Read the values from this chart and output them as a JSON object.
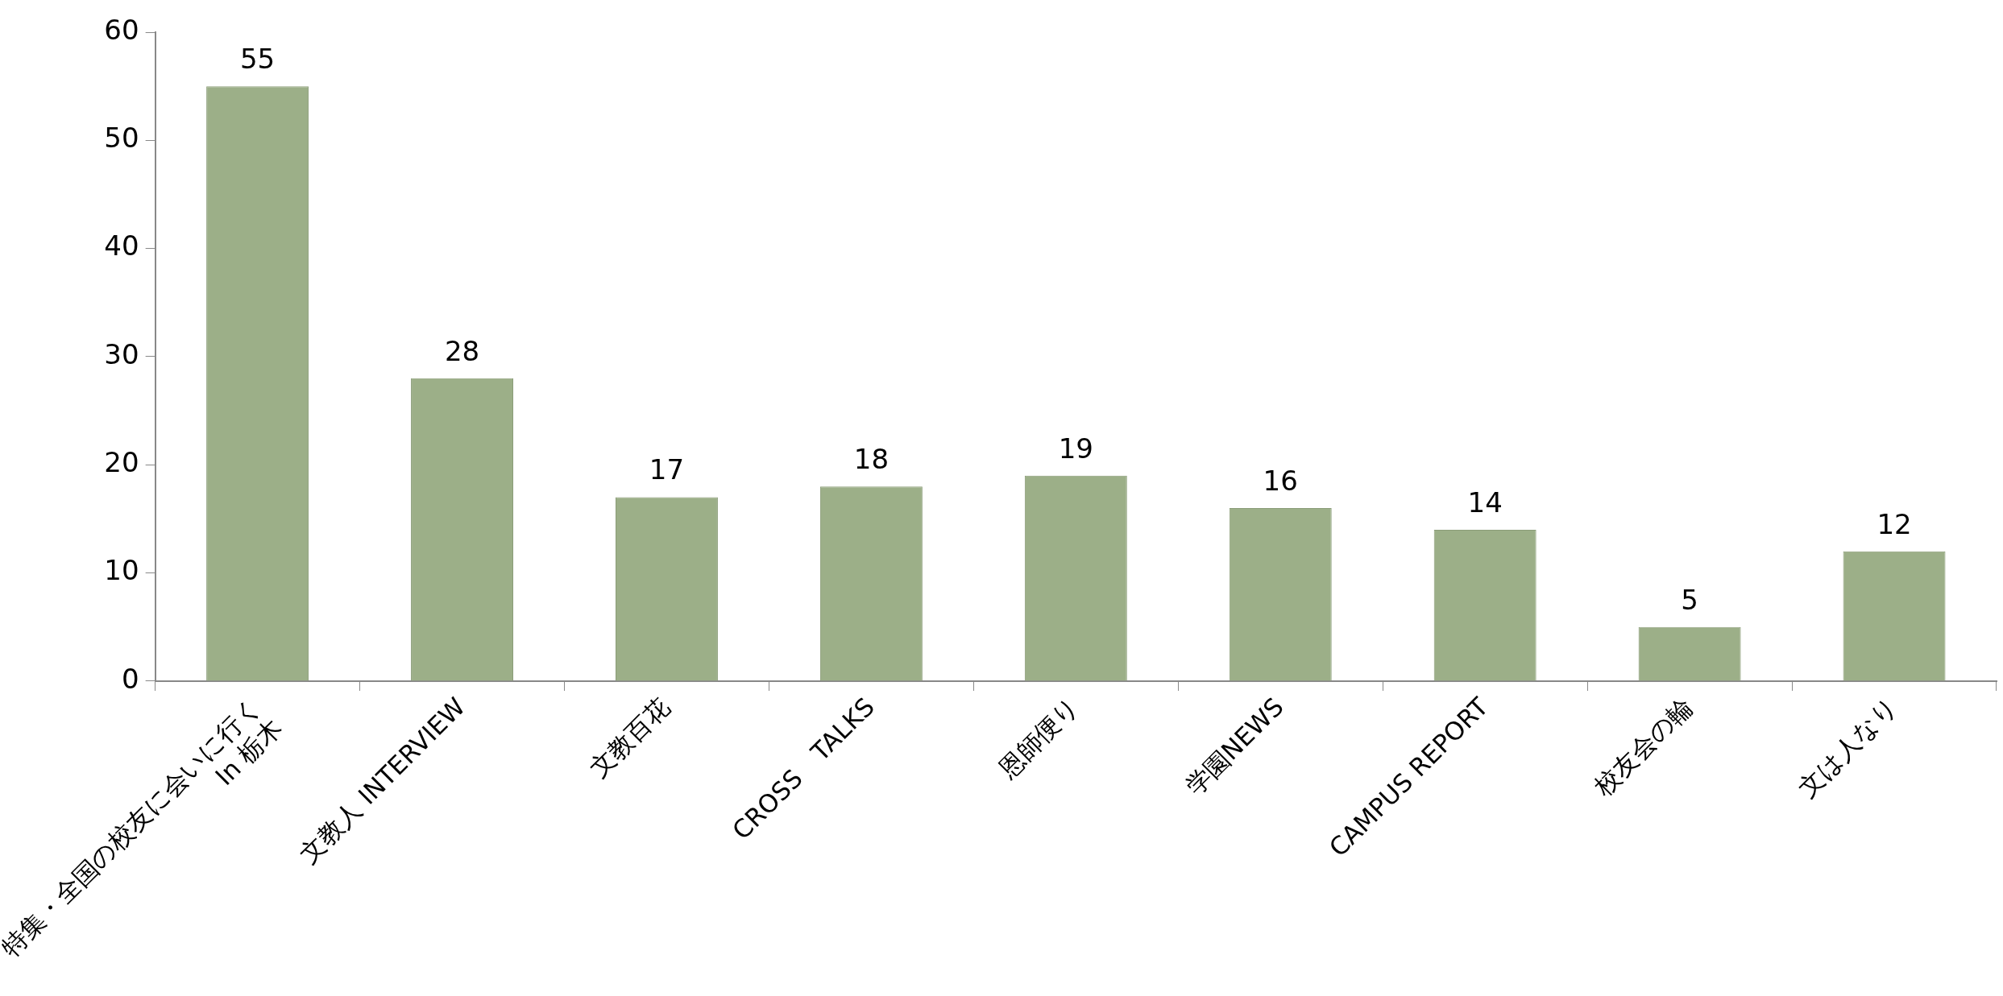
{
  "chart_data": {
    "type": "bar",
    "categories": [
      "特集・全国の校友に会いに行く\nIn 栃木",
      "文教人 INTERVIEW",
      "文教百花",
      "CROSS　TALKS",
      "恩師便り",
      "学園NEWS",
      "CAMPUS REPORT",
      "校友会の輪",
      "文は人なり"
    ],
    "values": [
      55,
      28,
      17,
      18,
      19,
      16,
      14,
      5,
      12
    ],
    "color": "#9caf88",
    "ylim": [
      0,
      60
    ],
    "yticks": [
      0,
      10,
      20,
      30,
      40,
      50,
      60
    ],
    "grid": false,
    "legend": false,
    "data_labels": true
  }
}
